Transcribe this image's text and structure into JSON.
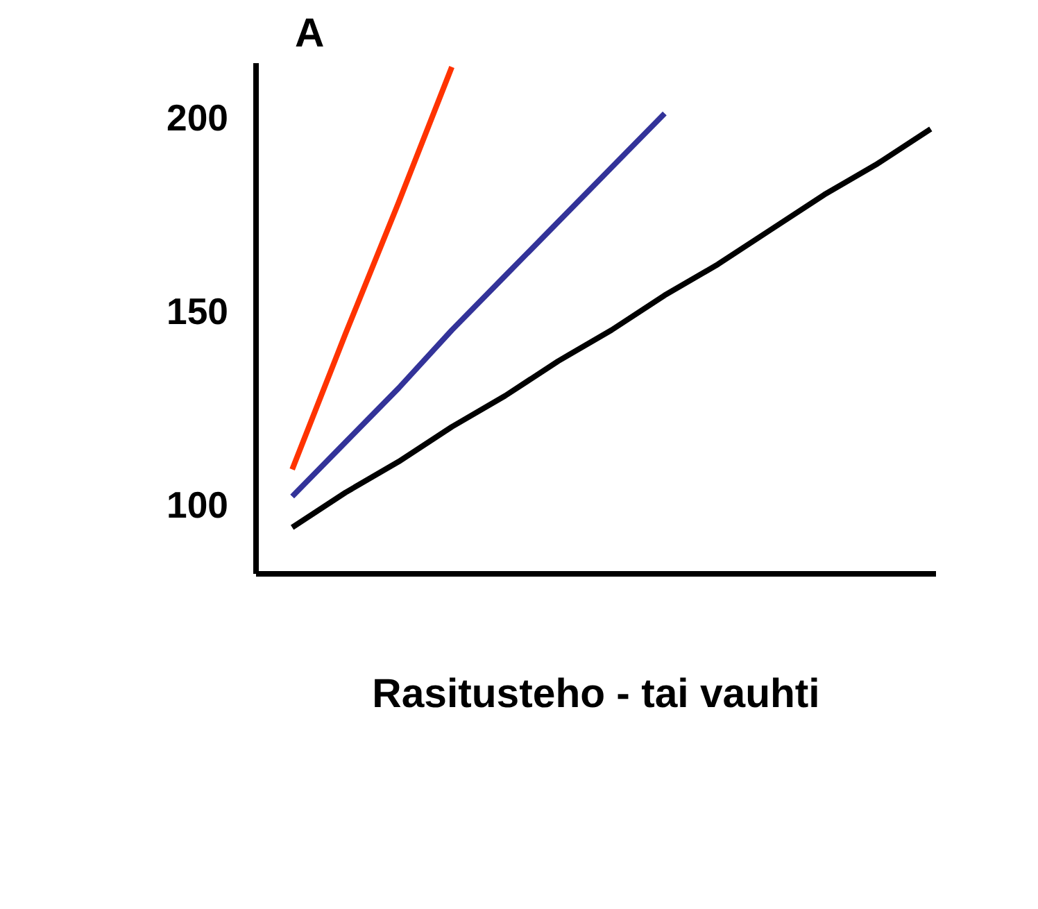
{
  "chart_data": {
    "type": "line",
    "title": "A",
    "xlabel": "Rasitusteho - tai vauhti",
    "categories": [
      null,
      null,
      null,
      null,
      null,
      null,
      null,
      null,
      null,
      null,
      null,
      null,
      null
    ],
    "ylim": [
      82,
      214
    ],
    "yticks": [
      100,
      150,
      200
    ],
    "grid": false,
    "marker": "none",
    "line_style": "solid",
    "series": [
      {
        "color": "#000000",
        "values": [
          94,
          103,
          111,
          120,
          128,
          137,
          145,
          154,
          162,
          171,
          180,
          188,
          197
        ]
      },
      {
        "color": "#333399",
        "values": [
          102,
          116,
          130,
          145,
          159,
          173,
          187,
          201,
          null,
          null,
          null,
          null,
          null
        ]
      },
      {
        "color": "#ff3300",
        "values": [
          109,
          144,
          178,
          213,
          null,
          null,
          null,
          null,
          null,
          null,
          null,
          null,
          null
        ]
      }
    ]
  }
}
